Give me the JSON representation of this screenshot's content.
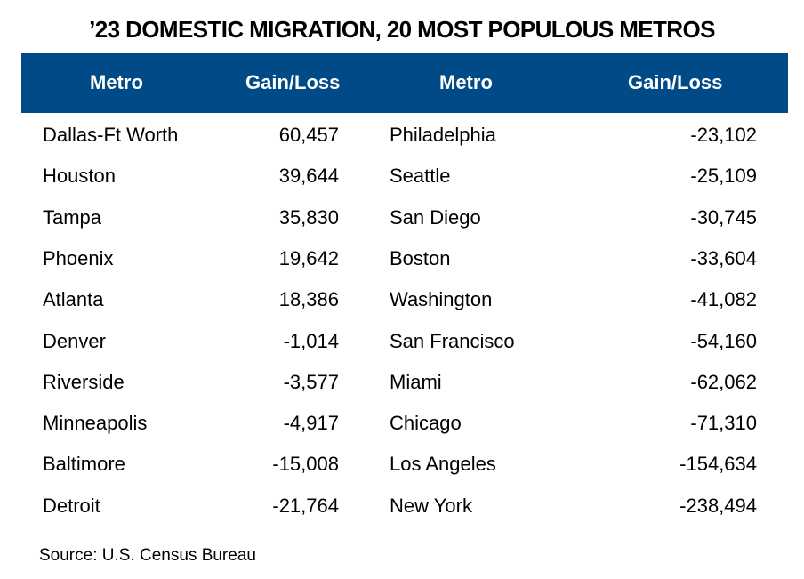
{
  "title": "’23 DOMESTIC MIGRATION, 20 MOST POPULOUS METROS",
  "header": {
    "metro1": "Metro",
    "gain1": "Gain/Loss",
    "metro2": "Metro",
    "gain2": "Gain/Loss",
    "color": "#004a87"
  },
  "source": "Source: U.S. Census Bureau",
  "chart_data": {
    "type": "table",
    "title": "’23 DOMESTIC MIGRATION, 20 MOST POPULOUS METROS",
    "columns": [
      "Metro",
      "Gain/Loss",
      "Metro",
      "Gain/Loss"
    ],
    "rows": [
      [
        "Dallas-Ft Worth",
        "60,457",
        "Philadelphia",
        "-23,102"
      ],
      [
        "Houston",
        "39,644",
        "Seattle",
        "-25,109"
      ],
      [
        "Tampa",
        "35,830",
        "San Diego",
        "-30,745"
      ],
      [
        "Phoenix",
        "19,642",
        "Boston",
        "-33,604"
      ],
      [
        "Atlanta",
        "18,386",
        "Washington",
        "-41,082"
      ],
      [
        "Denver",
        "-1,014",
        "San Francisco",
        "-54,160"
      ],
      [
        "Riverside",
        "-3,577",
        "Miami",
        "-62,062"
      ],
      [
        "Minneapolis",
        "-4,917",
        "Chicago",
        "-71,310"
      ],
      [
        "Baltimore",
        "-15,008",
        "Los Angeles",
        "-154,634"
      ],
      [
        "Detroit",
        "-21,764",
        "New York",
        "-238,494"
      ]
    ]
  }
}
